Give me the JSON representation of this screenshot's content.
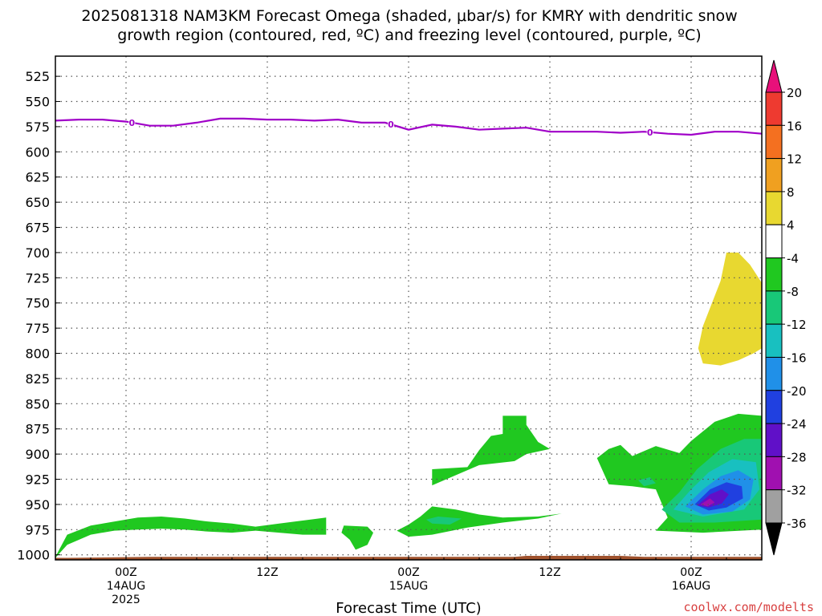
{
  "title": {
    "line1": "2025081318 NAM3KM Forecast Omega (shaded, μbar/s) for KMRY with dendritic snow",
    "line2": "growth region (contoured, red, ºC) and freezing level (contoured, purple, ºC)"
  },
  "credit": "coolwx.com/modelts",
  "colors": {
    "freezing_level": "#a000c8",
    "terrain": "#a0522d",
    "grid": "#555555"
  },
  "chart_data": {
    "type": "heatmap",
    "xlabel": "Forecast Time (UTC)",
    "x_hours_after_13AUG18Z": [
      0,
      60
    ],
    "ylim_hPa": [
      1005,
      505
    ],
    "y_ticks": [
      525,
      550,
      575,
      600,
      625,
      650,
      675,
      700,
      725,
      750,
      775,
      800,
      825,
      850,
      875,
      900,
      925,
      950,
      975,
      1000
    ],
    "x_ticks": [
      {
        "hour": 6,
        "label": "00Z",
        "sub": "14AUG",
        "sub2": "2025"
      },
      {
        "hour": 18,
        "label": "12Z",
        "sub": "",
        "sub2": ""
      },
      {
        "hour": 30,
        "label": "00Z",
        "sub": "15AUG",
        "sub2": ""
      },
      {
        "hour": 42,
        "label": "12Z",
        "sub": "",
        "sub2": ""
      },
      {
        "hour": 54,
        "label": "00Z",
        "sub": "16AUG",
        "sub2": ""
      }
    ],
    "grid": true,
    "colorbar": {
      "units": "μbar/s",
      "levels": [
        -36,
        -32,
        -28,
        -24,
        -20,
        -16,
        -12,
        -8,
        -4,
        4,
        8,
        12,
        16,
        20
      ],
      "labels": [
        "20",
        "16",
        "12",
        "8",
        "4",
        "-4",
        "-8",
        "-12",
        "-16",
        "-20",
        "-24",
        "-28",
        "-32",
        "-36"
      ],
      "colors_top_to_bottom": [
        "#e8107a",
        "#ee3a30",
        "#f47020",
        "#f0a020",
        "#e8d830",
        "#ffffff",
        "#20c820",
        "#18c878",
        "#18c0c0",
        "#2090e8",
        "#2040e0",
        "#6010c8",
        "#a010b0",
        "#a0a0a0",
        "#000000"
      ]
    },
    "freezing_level": {
      "label": "0",
      "hours": [
        0,
        2,
        4,
        6,
        8,
        10,
        12,
        14,
        16,
        18,
        20,
        22,
        24,
        26,
        28,
        30,
        32,
        34,
        36,
        38,
        40,
        42,
        44,
        46,
        48,
        50,
        52,
        54,
        56,
        58,
        60
      ],
      "hPa": [
        569,
        568,
        568,
        570,
        574,
        574,
        571,
        567,
        567,
        568,
        568,
        569,
        568,
        571,
        571,
        578,
        573,
        575,
        578,
        577,
        576,
        580,
        580,
        580,
        581,
        580,
        582,
        583,
        580,
        580,
        582
      ],
      "label_hours": [
        6.5,
        28.5,
        50.5
      ]
    },
    "omega_regions": [
      {
        "level": -4,
        "color": "#20c820",
        "name": "omega-region-low-level-west",
        "points": [
          [
            0,
            1002
          ],
          [
            1,
            980
          ],
          [
            3,
            971
          ],
          [
            5,
            967
          ],
          [
            7,
            963
          ],
          [
            9,
            962
          ],
          [
            11,
            964
          ],
          [
            13,
            967
          ],
          [
            15,
            969
          ],
          [
            17,
            972
          ],
          [
            19,
            969
          ],
          [
            21,
            966
          ],
          [
            23,
            963
          ],
          [
            23,
            980
          ],
          [
            21,
            980
          ],
          [
            19,
            978
          ],
          [
            17,
            976
          ],
          [
            15,
            978
          ],
          [
            13,
            977
          ],
          [
            11,
            975
          ],
          [
            9,
            974
          ],
          [
            7,
            975
          ],
          [
            5,
            976
          ],
          [
            3,
            980
          ],
          [
            1,
            990
          ],
          [
            0,
            1003
          ]
        ]
      },
      {
        "level": -4,
        "color": "#20c820",
        "name": "omega-region-low-level-mid",
        "points": [
          [
            24.5,
            971
          ],
          [
            26.5,
            972
          ],
          [
            27,
            978
          ],
          [
            26.5,
            990
          ],
          [
            25.5,
            995
          ],
          [
            25,
            985
          ],
          [
            24.3,
            978
          ]
        ]
      },
      {
        "level": -4,
        "color": "#20c820",
        "name": "omega-region-upper-mid",
        "points": [
          [
            32,
            915
          ],
          [
            35,
            913
          ],
          [
            36,
            896
          ],
          [
            37,
            882
          ],
          [
            38,
            880
          ],
          [
            38,
            862
          ],
          [
            40,
            862
          ],
          [
            40,
            871
          ],
          [
            41,
            888
          ],
          [
            42,
            895
          ],
          [
            40,
            900
          ],
          [
            39,
            907
          ],
          [
            36,
            911
          ],
          [
            32,
            931
          ]
        ]
      },
      {
        "level": -4,
        "color": "#20c820",
        "name": "omega-region-low-level-center",
        "points": [
          [
            29,
            976
          ],
          [
            30,
            970
          ],
          [
            31,
            962
          ],
          [
            32,
            952
          ],
          [
            34,
            955
          ],
          [
            36,
            960
          ],
          [
            38,
            963
          ],
          [
            41,
            962
          ],
          [
            43,
            959
          ],
          [
            41,
            964
          ],
          [
            38,
            968
          ],
          [
            35,
            973
          ],
          [
            32,
            980
          ],
          [
            30,
            982
          ]
        ]
      },
      {
        "level": -4,
        "color": "#20c820",
        "name": "omega-region-east",
        "points": [
          [
            46,
            904
          ],
          [
            47,
            895
          ],
          [
            48,
            891
          ],
          [
            49,
            902
          ],
          [
            50,
            897
          ],
          [
            51,
            892
          ],
          [
            53,
            899
          ],
          [
            54,
            887
          ],
          [
            56,
            868
          ],
          [
            58,
            860
          ],
          [
            60,
            862
          ],
          [
            60,
            975
          ],
          [
            55,
            978
          ],
          [
            51,
            976
          ],
          [
            52,
            963
          ],
          [
            51,
            935
          ],
          [
            49,
            932
          ],
          [
            47,
            930
          ]
        ]
      },
      {
        "level": -8,
        "color": "#18c878",
        "name": "omega-region-east-8",
        "points": [
          [
            51.5,
            955
          ],
          [
            53,
            938
          ],
          [
            54.5,
            915
          ],
          [
            56.5,
            895
          ],
          [
            58.5,
            885
          ],
          [
            60,
            885
          ],
          [
            60,
            965
          ],
          [
            56,
            968
          ],
          [
            53,
            968
          ]
        ]
      },
      {
        "level": -8,
        "color": "#18c878",
        "name": "omega-region-center-8",
        "points": [
          [
            31.5,
            965
          ],
          [
            32.5,
            962
          ],
          [
            34.5,
            964
          ],
          [
            33.5,
            970
          ],
          [
            32,
            969
          ]
        ]
      },
      {
        "level": -8,
        "color": "#18c878",
        "name": "omega-region-small-8",
        "points": [
          [
            49.5,
            926
          ],
          [
            50.5,
            923
          ],
          [
            51,
            929
          ],
          [
            50,
            932
          ]
        ]
      },
      {
        "level": -12,
        "color": "#18c0c0",
        "name": "omega-region-east-12",
        "points": [
          [
            52.5,
            955
          ],
          [
            54,
            935
          ],
          [
            55.5,
            918
          ],
          [
            57.5,
            905
          ],
          [
            59.5,
            908
          ],
          [
            59.8,
            935
          ],
          [
            58.5,
            955
          ],
          [
            55,
            962
          ]
        ]
      },
      {
        "level": -16,
        "color": "#2090e8",
        "name": "omega-region-east-16",
        "points": [
          [
            53.5,
            952
          ],
          [
            55,
            935
          ],
          [
            56.5,
            922
          ],
          [
            58,
            916
          ],
          [
            59.3,
            925
          ],
          [
            59,
            945
          ],
          [
            57.5,
            957
          ],
          [
            55,
            960
          ]
        ]
      },
      {
        "level": -20,
        "color": "#2040e0",
        "name": "omega-region-east-20",
        "points": [
          [
            54.3,
            950
          ],
          [
            55.6,
            935
          ],
          [
            57,
            928
          ],
          [
            58.3,
            932
          ],
          [
            58.4,
            944
          ],
          [
            57,
            953
          ],
          [
            55.5,
            956
          ]
        ]
      },
      {
        "level": -24,
        "color": "#6010c8",
        "name": "omega-region-east-24",
        "points": [
          [
            54.5,
            951
          ],
          [
            55.6,
            940
          ],
          [
            56.6,
            935
          ],
          [
            57.2,
            940
          ],
          [
            56.6,
            949
          ],
          [
            55.5,
            953
          ]
        ]
      },
      {
        "level": -28,
        "color": "#a010b0",
        "name": "omega-region-east-28",
        "points": [
          [
            54.8,
            950
          ],
          [
            55.6,
            944
          ],
          [
            56,
            948
          ],
          [
            55.4,
            952
          ]
        ]
      },
      {
        "level": 4,
        "color": "#e8d830",
        "name": "omega-region-positive",
        "points": [
          [
            55,
            773
          ],
          [
            56.5,
            728
          ],
          [
            57,
            700
          ],
          [
            58,
            700
          ],
          [
            59,
            712
          ],
          [
            60,
            730
          ],
          [
            60,
            795
          ],
          [
            59.3,
            800
          ],
          [
            58,
            807
          ],
          [
            56.5,
            812
          ],
          [
            55,
            810
          ],
          [
            54.6,
            795
          ]
        ]
      }
    ],
    "terrain": {
      "base_hPa": 1005,
      "points": [
        [
          0,
          1003
        ],
        [
          1,
          1003
        ],
        [
          8,
          1002
        ],
        [
          30,
          1002
        ],
        [
          39,
          1002
        ],
        [
          40,
          1001
        ],
        [
          48,
          1001
        ],
        [
          50,
          1002
        ],
        [
          60,
          1002
        ]
      ]
    }
  }
}
